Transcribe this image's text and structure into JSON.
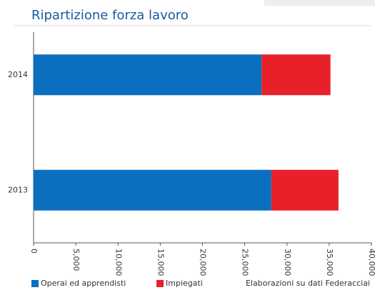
{
  "chart_data": {
    "type": "stacked-barh",
    "title": "Ripartizione forza lavoro",
    "categories": [
      "2014",
      "2013"
    ],
    "series": [
      {
        "name": "Operai ed apprendisti",
        "color": "#0b6fc0",
        "values": [
          27000,
          28150
        ]
      },
      {
        "name": "Impiegati",
        "color": "#e8202a",
        "values": [
          8150,
          7950
        ]
      }
    ],
    "xlim": [
      0,
      40000
    ],
    "xticks": [
      0,
      {
        "value": 5000,
        "label": "5,000"
      },
      {
        "value": 10000,
        "label": "10,000"
      },
      {
        "value": 15000,
        "label": "15,000"
      },
      {
        "value": 20000,
        "label": "20,000"
      },
      {
        "value": 25000,
        "label": "25,000"
      },
      {
        "value": 30000,
        "label": "30,000"
      },
      {
        "value": 35000,
        "label": "35,000"
      },
      {
        "value": 40000,
        "label": "40,000"
      }
    ],
    "source": "Elaborazioni su dati Federacciai"
  }
}
